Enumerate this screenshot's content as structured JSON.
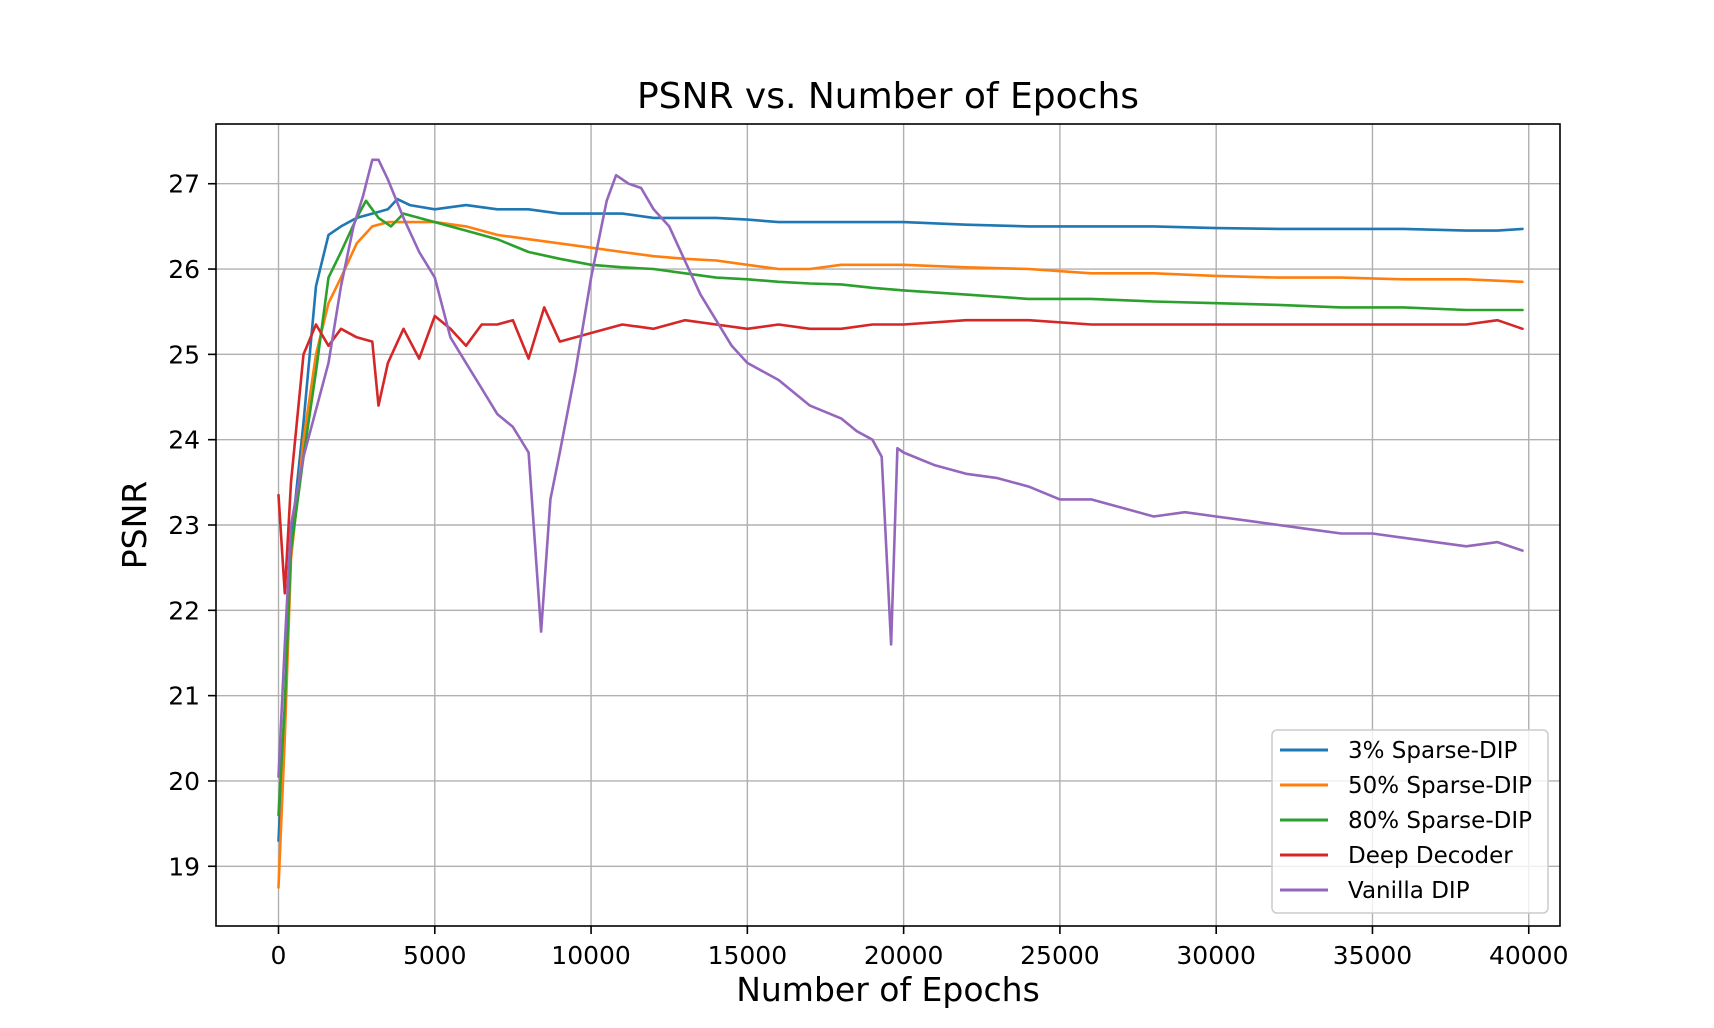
{
  "chart_data": {
    "type": "line",
    "title": "PSNR vs. Number of Epochs",
    "xlabel": "Number of Epochs",
    "ylabel": "PSNR",
    "xlim": [
      -2000,
      41000
    ],
    "ylim": [
      18.3,
      27.7
    ],
    "xticks": [
      0,
      5000,
      10000,
      15000,
      20000,
      25000,
      30000,
      35000,
      40000
    ],
    "yticks": [
      19,
      20,
      21,
      22,
      23,
      24,
      25,
      26,
      27
    ],
    "grid": true,
    "legend_position": "lower-right",
    "series": [
      {
        "name": "3% Sparse-DIP",
        "color": "#1f77b4",
        "points": [
          [
            0,
            19.3
          ],
          [
            200,
            20.8
          ],
          [
            400,
            22.8
          ],
          [
            800,
            24.2
          ],
          [
            1200,
            25.8
          ],
          [
            1600,
            26.4
          ],
          [
            2000,
            26.5
          ],
          [
            2500,
            26.6
          ],
          [
            3000,
            26.65
          ],
          [
            3500,
            26.7
          ],
          [
            3800,
            26.82
          ],
          [
            4200,
            26.75
          ],
          [
            5000,
            26.7
          ],
          [
            6000,
            26.75
          ],
          [
            7000,
            26.7
          ],
          [
            8000,
            26.7
          ],
          [
            9000,
            26.65
          ],
          [
            10000,
            26.65
          ],
          [
            11000,
            26.65
          ],
          [
            12000,
            26.6
          ],
          [
            13000,
            26.6
          ],
          [
            14000,
            26.6
          ],
          [
            15000,
            26.58
          ],
          [
            16000,
            26.55
          ],
          [
            17000,
            26.55
          ],
          [
            18000,
            26.55
          ],
          [
            19000,
            26.55
          ],
          [
            20000,
            26.55
          ],
          [
            22000,
            26.52
          ],
          [
            24000,
            26.5
          ],
          [
            25000,
            26.5
          ],
          [
            26000,
            26.5
          ],
          [
            28000,
            26.5
          ],
          [
            30000,
            26.48
          ],
          [
            32000,
            26.47
          ],
          [
            34000,
            26.47
          ],
          [
            36000,
            26.47
          ],
          [
            38000,
            26.45
          ],
          [
            39000,
            26.45
          ],
          [
            39800,
            26.47
          ]
        ]
      },
      {
        "name": "50% Sparse-DIP",
        "color": "#ff7f0e",
        "points": [
          [
            0,
            18.75
          ],
          [
            200,
            20.5
          ],
          [
            400,
            22.6
          ],
          [
            800,
            24.0
          ],
          [
            1200,
            25.0
          ],
          [
            1600,
            25.6
          ],
          [
            2000,
            25.9
          ],
          [
            2500,
            26.3
          ],
          [
            3000,
            26.5
          ],
          [
            3500,
            26.55
          ],
          [
            4000,
            26.55
          ],
          [
            5000,
            26.55
          ],
          [
            6000,
            26.5
          ],
          [
            7000,
            26.4
          ],
          [
            8000,
            26.35
          ],
          [
            9000,
            26.3
          ],
          [
            10000,
            26.25
          ],
          [
            11000,
            26.2
          ],
          [
            12000,
            26.15
          ],
          [
            13000,
            26.12
          ],
          [
            14000,
            26.1
          ],
          [
            15000,
            26.05
          ],
          [
            16000,
            26.0
          ],
          [
            17000,
            26.0
          ],
          [
            18000,
            26.05
          ],
          [
            19000,
            26.05
          ],
          [
            20000,
            26.05
          ],
          [
            22000,
            26.02
          ],
          [
            24000,
            26.0
          ],
          [
            26000,
            25.95
          ],
          [
            28000,
            25.95
          ],
          [
            30000,
            25.92
          ],
          [
            32000,
            25.9
          ],
          [
            34000,
            25.9
          ],
          [
            36000,
            25.88
          ],
          [
            38000,
            25.88
          ],
          [
            39800,
            25.85
          ]
        ]
      },
      {
        "name": "80% Sparse-DIP",
        "color": "#2ca02c",
        "points": [
          [
            0,
            19.6
          ],
          [
            200,
            20.9
          ],
          [
            400,
            22.7
          ],
          [
            800,
            23.8
          ],
          [
            1200,
            24.8
          ],
          [
            1600,
            25.9
          ],
          [
            2000,
            26.2
          ],
          [
            2500,
            26.6
          ],
          [
            2800,
            26.8
          ],
          [
            3200,
            26.6
          ],
          [
            3600,
            26.5
          ],
          [
            4000,
            26.65
          ],
          [
            5000,
            26.55
          ],
          [
            6000,
            26.45
          ],
          [
            7000,
            26.35
          ],
          [
            8000,
            26.2
          ],
          [
            9000,
            26.12
          ],
          [
            10000,
            26.05
          ],
          [
            11000,
            26.02
          ],
          [
            12000,
            26.0
          ],
          [
            13000,
            25.95
          ],
          [
            14000,
            25.9
          ],
          [
            15000,
            25.88
          ],
          [
            16000,
            25.85
          ],
          [
            17000,
            25.83
          ],
          [
            18000,
            25.82
          ],
          [
            19000,
            25.78
          ],
          [
            20000,
            25.75
          ],
          [
            22000,
            25.7
          ],
          [
            24000,
            25.65
          ],
          [
            26000,
            25.65
          ],
          [
            28000,
            25.62
          ],
          [
            30000,
            25.6
          ],
          [
            32000,
            25.58
          ],
          [
            34000,
            25.55
          ],
          [
            36000,
            25.55
          ],
          [
            38000,
            25.52
          ],
          [
            39800,
            25.52
          ]
        ]
      },
      {
        "name": "Deep Decoder",
        "color": "#d62728",
        "points": [
          [
            0,
            23.35
          ],
          [
            200,
            22.2
          ],
          [
            400,
            23.5
          ],
          [
            800,
            25.0
          ],
          [
            1200,
            25.35
          ],
          [
            1600,
            25.1
          ],
          [
            2000,
            25.3
          ],
          [
            2500,
            25.2
          ],
          [
            3000,
            25.15
          ],
          [
            3200,
            24.4
          ],
          [
            3500,
            24.9
          ],
          [
            4000,
            25.3
          ],
          [
            4500,
            24.95
          ],
          [
            5000,
            25.45
          ],
          [
            5500,
            25.3
          ],
          [
            6000,
            25.1
          ],
          [
            6500,
            25.35
          ],
          [
            7000,
            25.35
          ],
          [
            7500,
            25.4
          ],
          [
            8000,
            24.95
          ],
          [
            8500,
            25.55
          ],
          [
            9000,
            25.15
          ],
          [
            10000,
            25.25
          ],
          [
            11000,
            25.35
          ],
          [
            12000,
            25.3
          ],
          [
            13000,
            25.4
          ],
          [
            14000,
            25.35
          ],
          [
            15000,
            25.3
          ],
          [
            16000,
            25.35
          ],
          [
            17000,
            25.3
          ],
          [
            18000,
            25.3
          ],
          [
            19000,
            25.35
          ],
          [
            20000,
            25.35
          ],
          [
            22000,
            25.4
          ],
          [
            24000,
            25.4
          ],
          [
            26000,
            25.35
          ],
          [
            28000,
            25.35
          ],
          [
            30000,
            25.35
          ],
          [
            32000,
            25.35
          ],
          [
            34000,
            25.35
          ],
          [
            36000,
            25.35
          ],
          [
            38000,
            25.35
          ],
          [
            39000,
            25.4
          ],
          [
            39800,
            25.3
          ]
        ]
      },
      {
        "name": "Vanilla DIP",
        "color": "#9467bd",
        "points": [
          [
            0,
            20.05
          ],
          [
            200,
            21.6
          ],
          [
            400,
            23.0
          ],
          [
            800,
            23.8
          ],
          [
            1200,
            24.35
          ],
          [
            1600,
            24.9
          ],
          [
            2000,
            25.8
          ],
          [
            2400,
            26.5
          ],
          [
            2700,
            26.85
          ],
          [
            3000,
            27.28
          ],
          [
            3200,
            27.28
          ],
          [
            3500,
            27.05
          ],
          [
            4000,
            26.6
          ],
          [
            4500,
            26.2
          ],
          [
            5000,
            25.9
          ],
          [
            5500,
            25.2
          ],
          [
            6000,
            24.9
          ],
          [
            6500,
            24.6
          ],
          [
            7000,
            24.3
          ],
          [
            7500,
            24.15
          ],
          [
            8000,
            23.85
          ],
          [
            8400,
            21.75
          ],
          [
            8700,
            23.3
          ],
          [
            9000,
            23.85
          ],
          [
            9500,
            24.8
          ],
          [
            10000,
            25.9
          ],
          [
            10500,
            26.8
          ],
          [
            10800,
            27.1
          ],
          [
            11200,
            27.0
          ],
          [
            11600,
            26.95
          ],
          [
            12000,
            26.7
          ],
          [
            12500,
            26.5
          ],
          [
            13000,
            26.1
          ],
          [
            13500,
            25.7
          ],
          [
            14000,
            25.4
          ],
          [
            14500,
            25.1
          ],
          [
            15000,
            24.9
          ],
          [
            16000,
            24.7
          ],
          [
            17000,
            24.4
          ],
          [
            18000,
            24.25
          ],
          [
            18500,
            24.1
          ],
          [
            19000,
            24.0
          ],
          [
            19300,
            23.8
          ],
          [
            19600,
            21.6
          ],
          [
            19800,
            23.9
          ],
          [
            20000,
            23.85
          ],
          [
            21000,
            23.7
          ],
          [
            22000,
            23.6
          ],
          [
            23000,
            23.55
          ],
          [
            24000,
            23.45
          ],
          [
            25000,
            23.3
          ],
          [
            26000,
            23.3
          ],
          [
            27000,
            23.2
          ],
          [
            28000,
            23.1
          ],
          [
            29000,
            23.15
          ],
          [
            30000,
            23.1
          ],
          [
            31000,
            23.05
          ],
          [
            32000,
            23.0
          ],
          [
            33000,
            22.95
          ],
          [
            34000,
            22.9
          ],
          [
            35000,
            22.9
          ],
          [
            36000,
            22.85
          ],
          [
            37000,
            22.8
          ],
          [
            38000,
            22.75
          ],
          [
            39000,
            22.8
          ],
          [
            39800,
            22.7
          ]
        ]
      }
    ]
  }
}
